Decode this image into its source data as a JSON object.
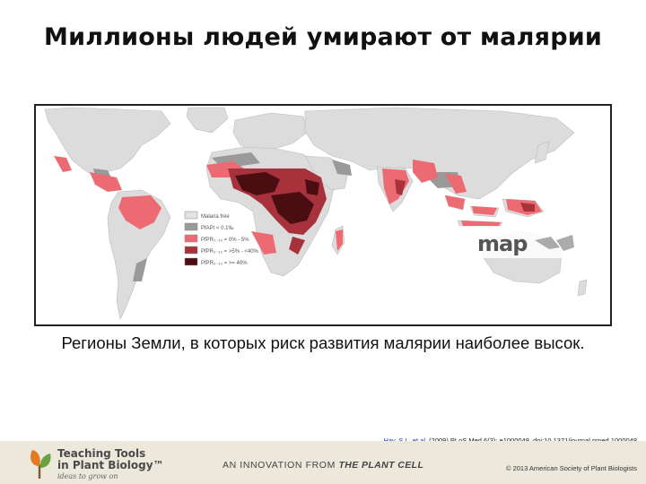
{
  "title": "Миллионы людей умирают от малярии",
  "map": {
    "legend": {
      "items": [
        {
          "label": "Malaria free",
          "color": "#e2e2e2"
        },
        {
          "label": "PfAPI < 0.1‰",
          "color": "#9a9a9a"
        },
        {
          "label": "PfPR₂₋₁₀ = 0% - 5%",
          "color": "#ec6b72"
        },
        {
          "label": "PfPR₂₋₁₀ = >5% - <40%",
          "color": "#a8323b"
        },
        {
          "label": "PfPR₂₋₁₀ = >= 40%",
          "color": "#4a0d12"
        }
      ]
    },
    "watermark": "map"
  },
  "caption": "Регионы Земли, в которых риск развития малярии наиболее высок.",
  "citation": {
    "author": "Hay, S.I., et al.",
    "text": " (2009) PLoS Med 6(3): e1000048. doi:10.1371/journal.pmed.1000048"
  },
  "footer": {
    "logo_line1": "Teaching Tools",
    "logo_line2": "in Plant Biology™",
    "logo_line3": "ideas to grow on",
    "innovation_prefix": "AN INNOVATION FROM ",
    "innovation_brand": "THE PLANT CELL",
    "copyright": "© 2013 American Society of Plant Biologists"
  }
}
